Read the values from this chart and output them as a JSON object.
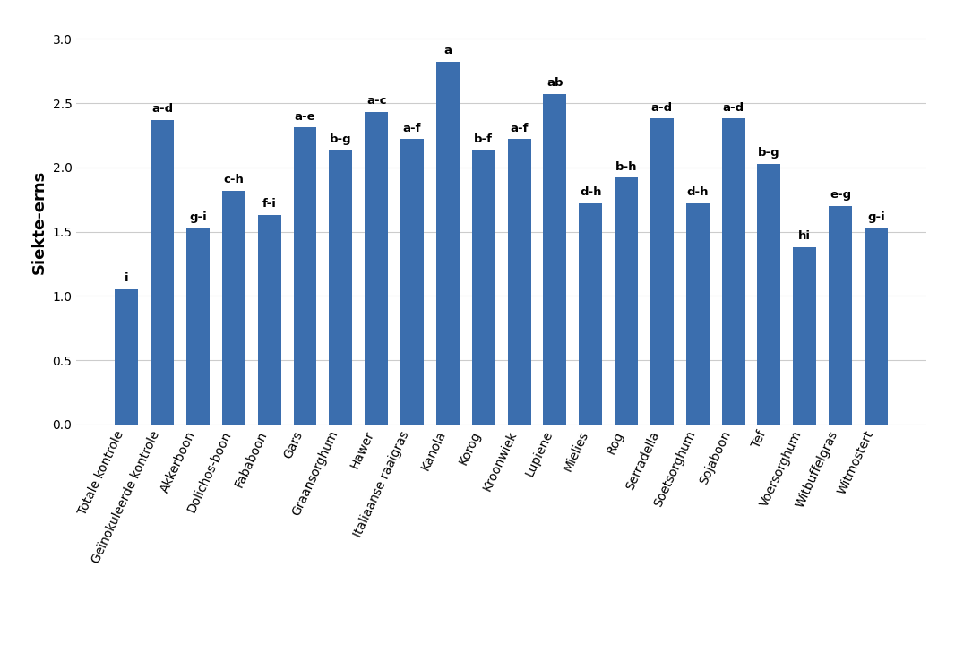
{
  "categories": [
    "Totale kontrole",
    "Geïnokuleerde kontrole",
    "Akkerboon",
    "Dolichos-boon",
    "Fababoon",
    "Gars",
    "Graansorghum",
    "Hawer",
    "Italiaanse raaigras",
    "Kanola",
    "Korog",
    "Kroonwiek",
    "Lupiene",
    "Mielies",
    "Rog",
    "Serradella",
    "Soetsorghum",
    "Sojaboon",
    "Tef",
    "Voersorghum",
    "Witbuffelgras",
    "Witmostert"
  ],
  "values": [
    1.05,
    2.37,
    1.53,
    1.82,
    1.63,
    2.31,
    2.13,
    2.43,
    2.22,
    2.82,
    2.13,
    2.22,
    2.57,
    1.72,
    1.92,
    2.38,
    1.72,
    2.38,
    2.03,
    1.38,
    1.7,
    1.53
  ],
  "labels": [
    "i",
    "a-d",
    "g-i",
    "c-h",
    "f-i",
    "a-e",
    "b-g",
    "a-c",
    "a-f",
    "a",
    "b-f",
    "a-f",
    "ab",
    "d-h",
    "b-h",
    "a-d",
    "d-h",
    "a-d",
    "b-g",
    "hi",
    "e-g",
    "g-i"
  ],
  "bar_color": "#3B6EAE",
  "ylabel": "Siekte-erns",
  "ylim": [
    0,
    3.15
  ],
  "yticks": [
    0,
    0.5,
    1.0,
    1.5,
    2.0,
    2.5,
    3.0
  ],
  "background_color": "#FFFFFF",
  "grid_color": "#CCCCCC",
  "label_fontsize": 9.5,
  "tick_fontsize": 10,
  "ylabel_fontsize": 13,
  "bar_width": 0.65
}
